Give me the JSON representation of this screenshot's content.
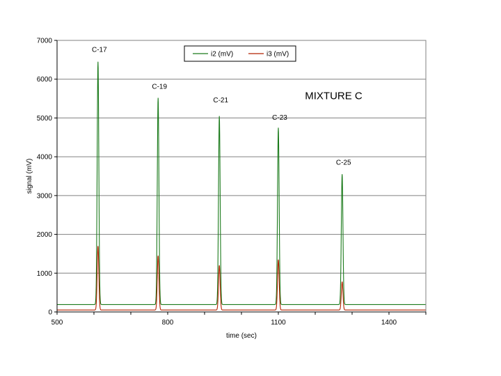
{
  "chart_data": {
    "type": "line",
    "title": "",
    "xlabel": "time (sec)",
    "ylabel": "signal (mV)",
    "xlim": [
      500,
      1500
    ],
    "ylim": [
      0,
      7000
    ],
    "xticks": [
      500,
      800,
      1100,
      1400
    ],
    "yticks": [
      0,
      1000,
      2000,
      3000,
      4000,
      5000,
      6000,
      7000
    ],
    "grid": "horizontal",
    "legend_position": "top-center",
    "series": [
      {
        "name": "i2 (mV)",
        "color": "#1a7a1a",
        "baseline": 190,
        "peaks": [
          {
            "x": 611,
            "y": 6450
          },
          {
            "x": 774,
            "y": 5520
          },
          {
            "x": 940,
            "y": 5050
          },
          {
            "x": 1100,
            "y": 4750
          },
          {
            "x": 1273,
            "y": 3550
          }
        ]
      },
      {
        "name": "i3 (mV)",
        "color": "#b22200",
        "baseline": 50,
        "peaks": [
          {
            "x": 611,
            "y": 1700
          },
          {
            "x": 774,
            "y": 1450
          },
          {
            "x": 940,
            "y": 1200
          },
          {
            "x": 1100,
            "y": 1350
          },
          {
            "x": 1273,
            "y": 780
          }
        ]
      }
    ],
    "annotations": [
      {
        "text": "C-17",
        "x": 611,
        "y": 6700
      },
      {
        "text": "C-19",
        "x": 774,
        "y": 5750
      },
      {
        "text": "C-21",
        "x": 940,
        "y": 5400
      },
      {
        "text": "C-23",
        "x": 1100,
        "y": 4950
      },
      {
        "text": "C-25",
        "x": 1273,
        "y": 3800
      }
    ],
    "label_text": {
      "text": "MIXTURE  C",
      "x": 1250,
      "y": 5480
    }
  }
}
